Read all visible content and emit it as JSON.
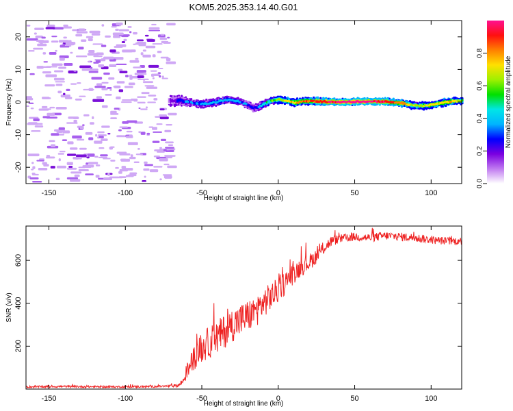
{
  "title": "KOM5.2025.353.14.40.G01",
  "chart_data": [
    {
      "type": "heatmap",
      "name": "spectrogram",
      "xlabel": "Height of straight line (km)",
      "ylabel": "Frequency (Hz)",
      "xlim": [
        -165,
        120
      ],
      "ylim": [
        -25,
        25
      ],
      "xticks": [
        -150,
        -100,
        -50,
        0,
        50,
        100
      ],
      "yticks": [
        -20,
        -10,
        0,
        10,
        20
      ],
      "noise_region_x": [
        -165,
        -70
      ],
      "signal_region_x": [
        -72,
        120
      ],
      "signal_ridge": {
        "x": [
          -72,
          -65,
          -60,
          -55,
          -50,
          -45,
          -40,
          -35,
          -30,
          -25,
          -20,
          -17,
          -14,
          -10,
          -5,
          0,
          5,
          10,
          15,
          20,
          30,
          40,
          50,
          60,
          70,
          80,
          85,
          90,
          95,
          100,
          105,
          110,
          115,
          120
        ],
        "freq": [
          0.3,
          0.5,
          0.0,
          -0.4,
          -0.6,
          -0.3,
          0.1,
          0.7,
          0.5,
          0.0,
          -1.0,
          -1.8,
          -1.6,
          -0.6,
          0.4,
          0.8,
          0.4,
          -0.2,
          0.2,
          0.3,
          0.1,
          0.0,
          0.1,
          0.2,
          0.1,
          -0.3,
          -0.8,
          -1.2,
          -1.1,
          -0.9,
          -0.4,
          0.0,
          0.3,
          0.4
        ],
        "amplitude": [
          0.2,
          0.28,
          0.32,
          0.35,
          0.38,
          0.4,
          0.42,
          0.38,
          0.4,
          0.35,
          0.3,
          0.3,
          0.33,
          0.45,
          0.55,
          0.62,
          0.7,
          0.75,
          0.8,
          0.85,
          0.9,
          0.95,
          0.97,
          0.95,
          0.9,
          0.8,
          0.7,
          0.62,
          0.68,
          0.72,
          0.7,
          0.75,
          0.7,
          0.6
        ]
      }
    },
    {
      "type": "colorbar",
      "label": "Normalized spectral amplitude",
      "range": [
        0,
        1
      ],
      "ticks": [
        "0.0",
        "0.2",
        "0.4",
        "0.6",
        "0.8"
      ],
      "tick_values": [
        0,
        0.2,
        0.4,
        0.6,
        0.8
      ],
      "colormap": [
        "#ffffff",
        "#c07af0",
        "#7a00e0",
        "#0000ff",
        "#00b4ff",
        "#00e6e6",
        "#00e000",
        "#9ef000",
        "#ffe000",
        "#ff8000",
        "#ff1010",
        "#ff1090"
      ]
    },
    {
      "type": "line",
      "name": "snr",
      "xlabel": "Height of straight line (km)",
      "ylabel": "SNR (v/v)",
      "xlim": [
        -165,
        120
      ],
      "ylim": [
        0,
        760
      ],
      "xticks": [
        -150,
        -100,
        -50,
        0,
        50,
        100
      ],
      "yticks": [
        200,
        400,
        600
      ],
      "color": "#ee2222",
      "x": [
        -165,
        -140,
        -110,
        -80,
        -70,
        -65,
        -62,
        -60,
        -55,
        -50,
        -45,
        -40,
        -35,
        -30,
        -25,
        -20,
        -15,
        -10,
        -5,
        0,
        5,
        10,
        15,
        20,
        25,
        30,
        35,
        40,
        50,
        60,
        70,
        80,
        90,
        100,
        110,
        120
      ],
      "y": [
        10,
        12,
        10,
        12,
        14,
        18,
        40,
        80,
        150,
        190,
        220,
        240,
        270,
        300,
        320,
        340,
        360,
        400,
        430,
        460,
        500,
        540,
        570,
        590,
        620,
        660,
        690,
        700,
        710,
        705,
        715,
        710,
        705,
        695,
        690,
        690
      ],
      "noise_amplitude": [
        5,
        5,
        5,
        5,
        6,
        8,
        20,
        35,
        60,
        70,
        75,
        80,
        80,
        80,
        80,
        75,
        75,
        70,
        65,
        60,
        55,
        50,
        45,
        40,
        35,
        30,
        25,
        20,
        20,
        20,
        20,
        20,
        20,
        18,
        18,
        18
      ]
    }
  ]
}
